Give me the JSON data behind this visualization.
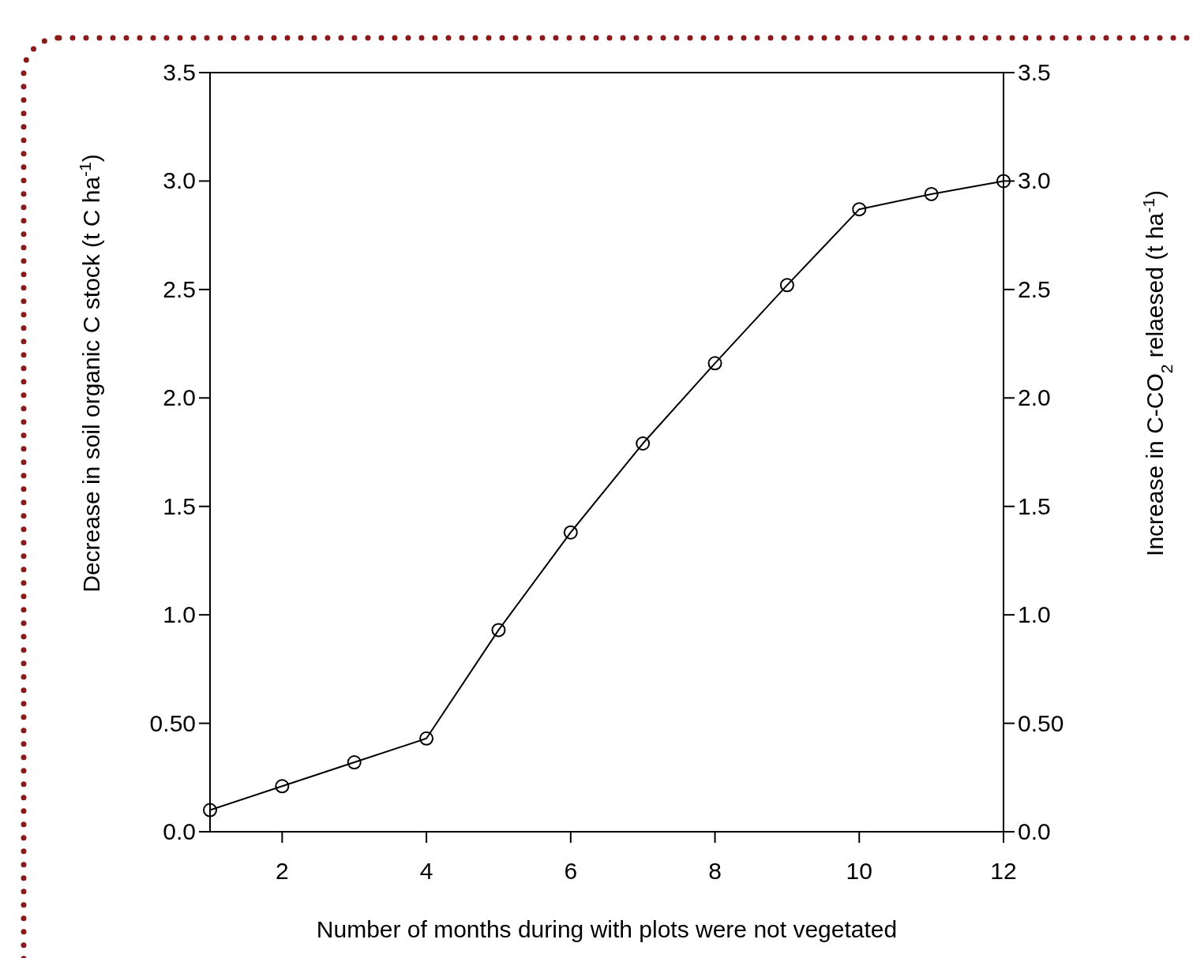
{
  "chart_data": {
    "type": "line",
    "xlabel": "Number of months during with plots were not vegetated",
    "ylabel": "Decrease in soil organic C stock (t C ha$^{-1}$)",
    "y2label": "Increase in C-CO$_{2}$ relaesed (t ha$^{-1}$)",
    "x": [
      1,
      2,
      3,
      4,
      5,
      6,
      7,
      8,
      9,
      10,
      11,
      12
    ],
    "series": [
      {
        "color": "#000000",
        "values": [
          0.1,
          0.21,
          0.32,
          0.43,
          0.93,
          1.38,
          1.79,
          2.16,
          2.52,
          2.87,
          2.94,
          3.0
        ]
      }
    ],
    "xlim": [
      1,
      12
    ],
    "xticks": [
      2,
      4,
      6,
      8,
      10,
      12
    ],
    "ylim": [
      0,
      3.5
    ],
    "yticks": [
      {
        "value": 0,
        "label": "0.0"
      },
      {
        "value": 0.5,
        "label": "0.50"
      },
      {
        "value": 1,
        "label": "1.0"
      },
      1.5,
      {
        "value": 2,
        "label": "2.0"
      },
      {
        "value": 2.5,
        "label": "2.5"
      },
      {
        "value": 3,
        "label": "3.0"
      },
      3.5
    ],
    "y2lim": [
      0,
      3.5
    ],
    "y2ticks": [
      {
        "value": 0,
        "label": "0.0"
      },
      {
        "value": 0.5,
        "label": "0.50"
      },
      {
        "value": 1,
        "label": "1.0"
      },
      1.5,
      {
        "value": 2,
        "label": "2.0"
      },
      {
        "value": 2.5,
        "label": "2.5"
      },
      {
        "value": 3,
        "label": "3.0"
      },
      3.5
    ],
    "marker": "circle",
    "line_style": "solid"
  }
}
